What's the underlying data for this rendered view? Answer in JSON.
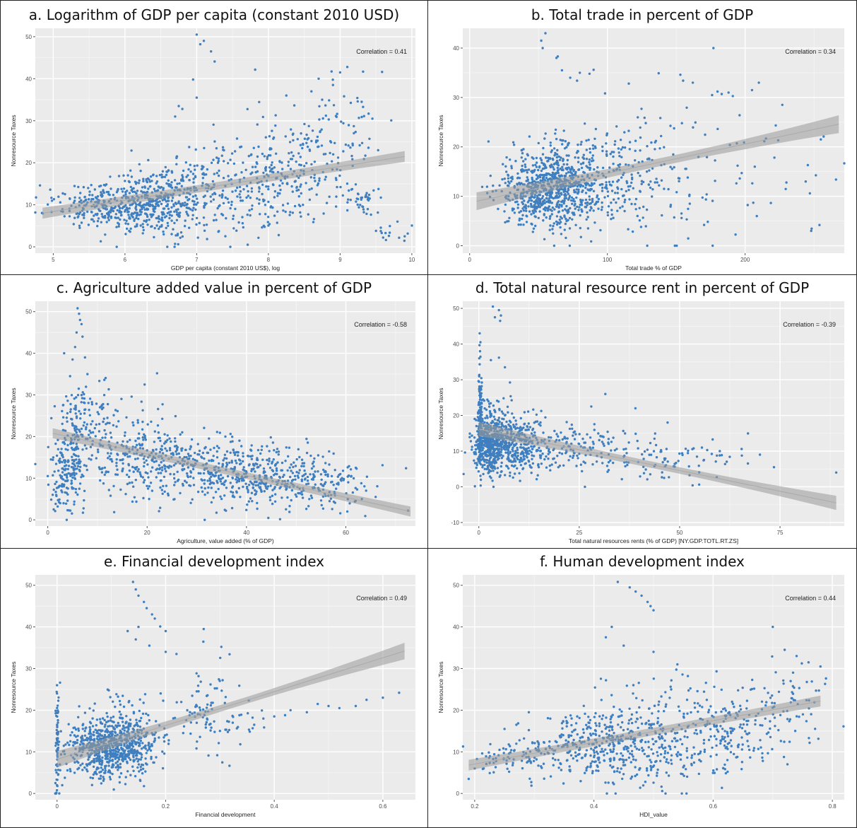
{
  "chart_data": [
    {
      "type": "scatter",
      "title": "a. Logarithm of GDP per capita (constant 2010 USD)",
      "xlabel": "GDP per capita (constant 2010 US$), log",
      "ylabel": "Nonresource Taxes",
      "annotation": "Correlation =  0.41",
      "xlim": [
        4.75,
        10.05
      ],
      "ylim": [
        -1.5,
        52
      ],
      "xticks": [
        5,
        6,
        7,
        8,
        9,
        10
      ],
      "yticks": [
        0,
        10,
        20,
        30,
        40,
        50
      ],
      "grid": true,
      "point_color": "#3f7fbf",
      "trend": {
        "x": [
          4.85,
          9.9
        ],
        "y": [
          8.0,
          21.5
        ],
        "band": [
          0.9,
          1.3
        ]
      },
      "clusters": [
        {
          "cx": 6.2,
          "cy": 10,
          "sx": 0.35,
          "sy": 3.5,
          "n": 420
        },
        {
          "cx": 5.4,
          "cy": 10,
          "sx": 0.3,
          "sy": 2.5,
          "n": 110
        },
        {
          "cx": 6.9,
          "cy": 13,
          "sx": 0.35,
          "sy": 5,
          "n": 220
        },
        {
          "cx": 7.8,
          "cy": 14,
          "sx": 0.35,
          "sy": 6,
          "n": 160
        },
        {
          "cx": 8.5,
          "cy": 19,
          "sx": 0.3,
          "sy": 6,
          "n": 150
        },
        {
          "cx": 9.1,
          "cy": 28,
          "sx": 0.25,
          "sy": 7,
          "n": 50
        },
        {
          "cx": 9.3,
          "cy": 11,
          "sx": 0.15,
          "sy": 2,
          "n": 40
        },
        {
          "cx": 9.7,
          "cy": 3,
          "sx": 0.12,
          "sy": 1.2,
          "n": 12
        }
      ],
      "points": [
        [
          7.0,
          50.5
        ],
        [
          7.1,
          49.0
        ],
        [
          7.05,
          48.2
        ],
        [
          7.2,
          46.5
        ],
        [
          7.25,
          44.1
        ],
        [
          6.95,
          39.8
        ],
        [
          9.1,
          42.8
        ],
        [
          9.0,
          41.5
        ],
        [
          8.7,
          40.0
        ],
        [
          9.3,
          34.5
        ],
        [
          9.45,
          30.5
        ],
        [
          6.75,
          33.5
        ],
        [
          6.8,
          32.8
        ],
        [
          6.7,
          31.0
        ],
        [
          7.0,
          35.5
        ],
        [
          8.25,
          36.0
        ],
        [
          8.6,
          37.0
        ],
        [
          8.9,
          38.5
        ],
        [
          9.8,
          6.0
        ],
        [
          9.9,
          2.5
        ],
        [
          9.6,
          2.2
        ],
        [
          9.5,
          3.8
        ]
      ]
    },
    {
      "type": "scatter",
      "title": "b. Total trade in percent of GDP",
      "xlabel": "Total trade % of GDP",
      "ylabel": "Nonresource Taxes",
      "annotation": "Correlation =  0.34",
      "xlim": [
        -5,
        272
      ],
      "ylim": [
        -1.5,
        44
      ],
      "xticks": [
        0,
        100,
        200
      ],
      "yticks": [
        0,
        10,
        20,
        30,
        40
      ],
      "grid": true,
      "point_color": "#3f7fbf",
      "trend": {
        "x": [
          5,
          268
        ],
        "y": [
          9.0,
          24.6
        ],
        "band": [
          0.8,
          1.8
        ]
      },
      "clusters": [
        {
          "cx": 55,
          "cy": 11.5,
          "sx": 17,
          "sy": 4,
          "n": 650
        },
        {
          "cx": 85,
          "cy": 14,
          "sx": 22,
          "sy": 5,
          "n": 300
        },
        {
          "cx": 130,
          "cy": 14,
          "sx": 22,
          "sy": 6,
          "n": 120
        },
        {
          "cx": 190,
          "cy": 14,
          "sx": 40,
          "sy": 8,
          "n": 45
        }
      ],
      "points": [
        [
          55,
          43.0
        ],
        [
          52,
          41.5
        ],
        [
          53,
          40.0
        ],
        [
          64,
          38.3
        ],
        [
          63,
          38.0
        ],
        [
          177,
          40.0
        ],
        [
          90,
          35.6
        ],
        [
          67,
          35.5
        ],
        [
          80,
          35.0
        ],
        [
          87,
          34.8
        ],
        [
          73,
          34.0
        ],
        [
          78,
          33.4
        ],
        [
          153,
          34.6
        ],
        [
          155,
          33.4
        ],
        [
          162,
          33.0
        ],
        [
          210,
          33.0
        ],
        [
          205,
          31.5
        ],
        [
          180,
          31.2
        ],
        [
          183,
          30.7
        ],
        [
          188,
          31.0
        ],
        [
          227,
          28.5
        ],
        [
          257,
          22.1
        ],
        [
          266,
          13.4
        ],
        [
          244,
          13.0
        ],
        [
          247,
          10.6
        ],
        [
          254,
          4.2
        ],
        [
          248,
          3.0
        ],
        [
          230,
          12.8
        ],
        [
          207,
          16.0
        ]
      ]
    },
    {
      "type": "scatter",
      "title": "c. Agriculture added value in percent of GDP",
      "xlabel": "Agriculture, value added (% of GDP)",
      "ylabel": "Nonresource Taxes",
      "annotation": "Correlation =  -0.58",
      "xlim": [
        -2.5,
        74
      ],
      "ylim": [
        -1.5,
        52.5
      ],
      "xticks": [
        0,
        20,
        40,
        60
      ],
      "yticks": [
        0,
        10,
        20,
        30,
        40,
        50
      ],
      "grid": true,
      "point_color": "#3f7fbf",
      "trend": {
        "x": [
          1,
          73
        ],
        "y": [
          20.8,
          2.0
        ],
        "band": [
          0.8,
          1.2
        ]
      },
      "clusters": [
        {
          "cx": 4,
          "cy": 12,
          "sx": 1.5,
          "sy": 5,
          "n": 170
        },
        {
          "cx": 7,
          "cy": 24,
          "sx": 3,
          "sy": 5,
          "n": 110
        },
        {
          "cx": 15,
          "cy": 17,
          "sx": 6,
          "sy": 6,
          "n": 200
        },
        {
          "cx": 30,
          "cy": 12.5,
          "sx": 8,
          "sy": 4,
          "n": 360
        },
        {
          "cx": 45,
          "cy": 10,
          "sx": 7,
          "sy": 3.5,
          "n": 280
        },
        {
          "cx": 57,
          "cy": 8,
          "sx": 4,
          "sy": 3,
          "n": 90
        }
      ],
      "points": [
        [
          6.0,
          50.8
        ],
        [
          6.3,
          49.5
        ],
        [
          6.5,
          48.0
        ],
        [
          6.8,
          47.0
        ],
        [
          5.8,
          45.0
        ],
        [
          7.0,
          44.0
        ],
        [
          5.5,
          41.5
        ],
        [
          3.3,
          40.0
        ],
        [
          7.5,
          39.0
        ],
        [
          5.0,
          38.5
        ],
        [
          4.5,
          34.5
        ],
        [
          8.0,
          35.0
        ],
        [
          22.0,
          35.2
        ],
        [
          19.5,
          32.5
        ],
        [
          1.2,
          2.5
        ],
        [
          1.5,
          2.1
        ],
        [
          2.0,
          3.2
        ],
        [
          2.5,
          4.0
        ],
        [
          1.0,
          6.0
        ],
        [
          72.5,
          2.2
        ],
        [
          66.0,
          5.5
        ],
        [
          62.0,
          12.5
        ]
      ]
    },
    {
      "type": "scatter",
      "title": "d. Total natural resource rent in percent of GDP",
      "xlabel": "Total natural resources rents (% of GDP) [NY.GDP.TOTL.RT.ZS]",
      "ylabel": "Nonresource Taxes",
      "annotation": "Correlation =  -0.39",
      "xlim": [
        -4,
        91
      ],
      "ylim": [
        -11,
        52
      ],
      "xticks": [
        0,
        25,
        50,
        75
      ],
      "yticks": [
        -10,
        0,
        10,
        20,
        30,
        40,
        50
      ],
      "grid": true,
      "point_color": "#3f7fbf",
      "trend": {
        "x": [
          0,
          89
        ],
        "y": [
          16.2,
          -4.5
        ],
        "band": [
          0.9,
          2.0
        ]
      },
      "clusters": [
        {
          "cx": 0.3,
          "cy": 19,
          "sx": 0.25,
          "sy": 7,
          "n": 130
        },
        {
          "cx": 3,
          "cy": 12.5,
          "sx": 2,
          "sy": 4.5,
          "n": 450
        },
        {
          "cx": 9,
          "cy": 11.5,
          "sx": 4,
          "sy": 4,
          "n": 330
        },
        {
          "cx": 22,
          "cy": 11,
          "sx": 8,
          "sy": 3.5,
          "n": 170
        },
        {
          "cx": 45,
          "cy": 8,
          "sx": 10,
          "sy": 3,
          "n": 90
        }
      ],
      "points": [
        [
          3.5,
          50.5
        ],
        [
          5.0,
          49.5
        ],
        [
          5.5,
          48.0
        ],
        [
          5.3,
          46.5
        ],
        [
          4.0,
          47.5
        ],
        [
          0.2,
          43.0
        ],
        [
          0.4,
          40.5
        ],
        [
          0.3,
          38.0
        ],
        [
          0.1,
          36.0
        ],
        [
          3.0,
          35.5
        ],
        [
          6.5,
          33.5
        ],
        [
          5.0,
          36.2
        ],
        [
          31.5,
          26.0
        ],
        [
          28.0,
          22.5
        ],
        [
          39.0,
          22.0
        ],
        [
          47.0,
          18.0
        ],
        [
          73.5,
          5.5
        ],
        [
          89.0,
          4.0
        ],
        [
          70.0,
          9.0
        ],
        [
          60.0,
          10.0
        ],
        [
          58.0,
          9.2
        ]
      ]
    },
    {
      "type": "scatter",
      "title": "e. Financial development index",
      "xlabel": "Financial development",
      "ylabel": "Nonresource Taxes",
      "annotation": "Correlation =  0.49",
      "xlim": [
        -0.04,
        0.66
      ],
      "ylim": [
        -1.5,
        52.5
      ],
      "xticks": [
        0,
        0.2,
        0.4,
        0.6
      ],
      "yticks": [
        0,
        10,
        20,
        30,
        40,
        50
      ],
      "grid": true,
      "point_color": "#3f7fbf",
      "trend": {
        "x": [
          0,
          0.64
        ],
        "y": [
          8.2,
          34.2
        ],
        "band": [
          0.8,
          2.0
        ]
      },
      "clusters": [
        {
          "cx": 0.0,
          "cy": 12,
          "sx": 0.002,
          "sy": 6,
          "n": 70
        },
        {
          "cx": 0.09,
          "cy": 11,
          "sx": 0.035,
          "sy": 3.5,
          "n": 600
        },
        {
          "cx": 0.14,
          "cy": 14,
          "sx": 0.03,
          "sy": 5,
          "n": 200
        },
        {
          "cx": 0.28,
          "cy": 20,
          "sx": 0.03,
          "sy": 6,
          "n": 80
        },
        {
          "cx": 0.34,
          "cy": 17,
          "sx": 0.03,
          "sy": 2,
          "n": 20
        }
      ],
      "points": [
        [
          0.14,
          50.8
        ],
        [
          0.145,
          49.0
        ],
        [
          0.15,
          47.5
        ],
        [
          0.16,
          46.0
        ],
        [
          0.165,
          44.5
        ],
        [
          0.175,
          43.0
        ],
        [
          0.18,
          42.0
        ],
        [
          0.15,
          40.0
        ],
        [
          0.13,
          39.0
        ],
        [
          0.19,
          40.1
        ],
        [
          0.2,
          39.0
        ],
        [
          0.27,
          39.5
        ],
        [
          0.145,
          37.0
        ],
        [
          0.17,
          35.5
        ],
        [
          0.2,
          34.0
        ],
        [
          0.22,
          33.5
        ],
        [
          0.43,
          20.0
        ],
        [
          0.48,
          21.5
        ],
        [
          0.52,
          20.5
        ],
        [
          0.57,
          22.5
        ],
        [
          0.6,
          23.0
        ],
        [
          0.63,
          24.2
        ],
        [
          0.55,
          21.0
        ],
        [
          0.46,
          19.5
        ],
        [
          0.4,
          18.5
        ],
        [
          0.38,
          18.0
        ],
        [
          0.42,
          18.8
        ],
        [
          0.5,
          21.0
        ],
        [
          0.0,
          26.0
        ],
        [
          0.0,
          24.0
        ],
        [
          0.0,
          2.0
        ]
      ]
    },
    {
      "type": "scatter",
      "title": "f. Human development index",
      "xlabel": "HDI_value",
      "ylabel": "Nonresource Taxes",
      "annotation": "Correlation =  0.44",
      "xlim": [
        0.18,
        0.82
      ],
      "ylim": [
        -1.5,
        52.5
      ],
      "xticks": [
        0.2,
        0.4,
        0.6,
        0.8
      ],
      "yticks": [
        0,
        10,
        20,
        30,
        40,
        50
      ],
      "grid": true,
      "point_color": "#3f7fbf",
      "trend": {
        "x": [
          0.19,
          0.78
        ],
        "y": [
          6.8,
          22.2
        ],
        "band": [
          0.9,
          1.3
        ]
      },
      "clusters": [
        {
          "cx": 0.27,
          "cy": 9,
          "sx": 0.04,
          "sy": 2.5,
          "n": 90
        },
        {
          "cx": 0.4,
          "cy": 12,
          "sx": 0.05,
          "sy": 4,
          "n": 300
        },
        {
          "cx": 0.5,
          "cy": 13,
          "sx": 0.05,
          "sy": 6,
          "n": 250
        },
        {
          "cx": 0.62,
          "cy": 16,
          "sx": 0.05,
          "sy": 5,
          "n": 170
        },
        {
          "cx": 0.72,
          "cy": 20,
          "sx": 0.04,
          "sy": 5,
          "n": 70
        }
      ],
      "points": [
        [
          0.44,
          50.8
        ],
        [
          0.46,
          49.5
        ],
        [
          0.47,
          48.5
        ],
        [
          0.48,
          47.5
        ],
        [
          0.49,
          46.0
        ],
        [
          0.495,
          45.0
        ],
        [
          0.5,
          44.0
        ],
        [
          0.43,
          40.0
        ],
        [
          0.42,
          37.5
        ],
        [
          0.45,
          35.5
        ],
        [
          0.5,
          34.0
        ],
        [
          0.54,
          31.0
        ],
        [
          0.7,
          40.0
        ],
        [
          0.72,
          34.5
        ],
        [
          0.74,
          33.0
        ],
        [
          0.76,
          31.5
        ],
        [
          0.78,
          30.5
        ],
        [
          0.73,
          27.0
        ],
        [
          0.19,
          3.5
        ],
        [
          0.2,
          6.0
        ],
        [
          0.25,
          15.5
        ],
        [
          0.27,
          16.5
        ]
      ]
    }
  ]
}
